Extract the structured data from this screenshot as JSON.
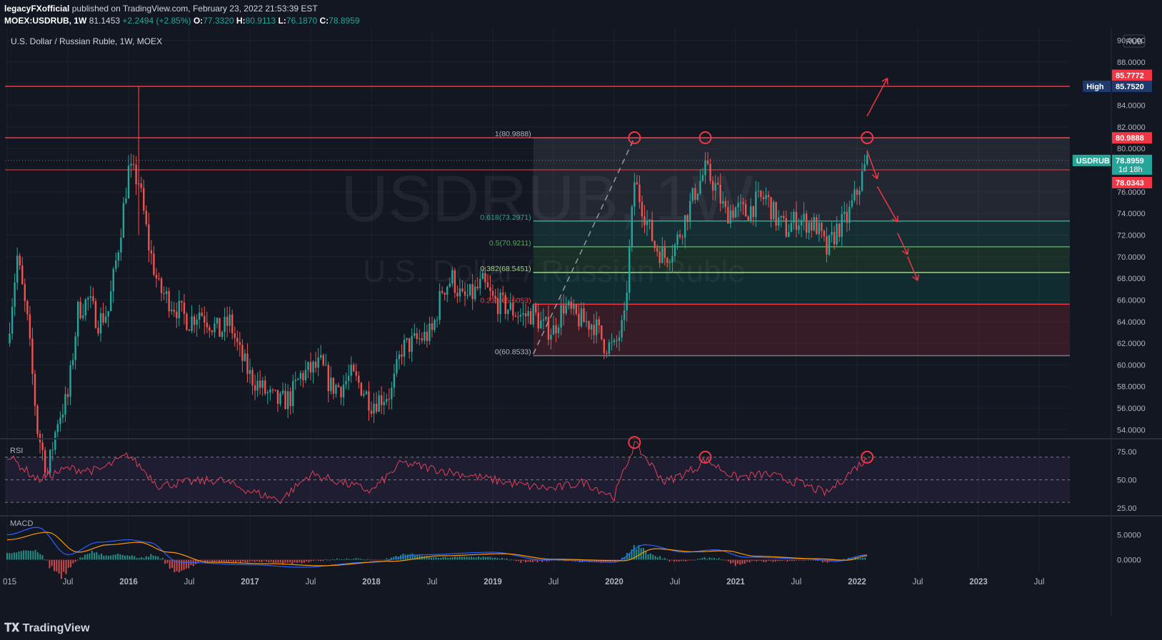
{
  "header": {
    "author": "legacyFXofficial",
    "published_text": "published on TradingView.com, February 23, 2022 21:53:39 EST",
    "symbol": "MOEX:USDRUB, 1W",
    "last": "81.1453",
    "change": "+2.2494 (+2.85%)",
    "o_label": "O:",
    "o_value": "77.3320",
    "h_label": "H:",
    "h_value": "80.9113",
    "l_label": "L:",
    "l_value": "76.1870",
    "c_label": "C:",
    "c_value": "78.8959"
  },
  "pane_title": "U.S. Dollar / Russian Ruble, 1W, MOEX",
  "watermark": {
    "symbol": "USDRUB, 1W",
    "name": "U.S. Dollar / Russian Ruble"
  },
  "currency_button": "RUB",
  "footer": {
    "logo_text": "TradingView"
  },
  "colors": {
    "background": "#131722",
    "grid": "#1e222d",
    "up": "#26a69a",
    "down": "#ef5350",
    "rsi": "#e0415a",
    "macd": "#2962ff",
    "signal": "#ff9800",
    "resistance": "#f23645"
  },
  "chart_data": [
    {
      "type": "candlestick",
      "title": "U.S. Dollar / Russian Ruble, 1W, MOEX",
      "x_ticks": [
        "015",
        "Jul",
        "2016",
        "Jul",
        "2017",
        "Jul",
        "2018",
        "Jul",
        "2019",
        "Jul",
        "2020",
        "Jul",
        "2021",
        "Jul",
        "2022",
        "Jul",
        "2023",
        "Jul"
      ],
      "y_ticks": [
        "90.0000",
        "88.0000",
        "86.0000",
        "84.0000",
        "82.0000",
        "80.0000",
        "78.0000",
        "76.0000",
        "74.0000",
        "72.0000",
        "70.0000",
        "68.0000",
        "66.0000",
        "64.0000",
        "62.0000",
        "60.0000",
        "58.0000",
        "56.0000",
        "54.0000"
      ],
      "ylim": [
        53.3,
        90.3
      ],
      "close_path": [
        [
          "2015-01",
          62
        ],
        [
          "2015-02",
          70
        ],
        [
          "2015-03",
          64
        ],
        [
          "2015-04",
          54
        ],
        [
          "2015-05",
          50
        ],
        [
          "2015-06",
          55
        ],
        [
          "2015-07",
          57
        ],
        [
          "2015-08",
          65
        ],
        [
          "2015-09",
          66
        ],
        [
          "2015-10",
          64
        ],
        [
          "2015-11",
          65
        ],
        [
          "2015-12",
          71
        ],
        [
          "2016-01",
          78
        ],
        [
          "2016-02",
          77
        ],
        [
          "2016-03",
          71
        ],
        [
          "2016-04",
          67
        ],
        [
          "2016-05",
          66
        ],
        [
          "2016-06",
          65
        ],
        [
          "2016-07",
          64
        ],
        [
          "2016-08",
          65
        ],
        [
          "2016-09",
          64
        ],
        [
          "2016-10",
          63
        ],
        [
          "2016-11",
          64
        ],
        [
          "2016-12",
          61
        ],
        [
          "2017-01",
          59
        ],
        [
          "2017-02",
          58
        ],
        [
          "2017-03",
          57
        ],
        [
          "2017-04",
          56.5
        ],
        [
          "2017-05",
          57
        ],
        [
          "2017-06",
          59
        ],
        [
          "2017-07",
          59.5
        ],
        [
          "2017-08",
          60
        ],
        [
          "2017-09",
          58
        ],
        [
          "2017-10",
          58
        ],
        [
          "2017-11",
          59
        ],
        [
          "2017-12",
          58
        ],
        [
          "2018-01",
          56.5
        ],
        [
          "2018-02",
          57
        ],
        [
          "2018-03",
          57.5
        ],
        [
          "2018-04",
          61.5
        ],
        [
          "2018-05",
          62
        ],
        [
          "2018-06",
          62.5
        ],
        [
          "2018-07",
          63
        ],
        [
          "2018-08",
          67
        ],
        [
          "2018-09",
          68
        ],
        [
          "2018-10",
          66
        ],
        [
          "2018-11",
          66.5
        ],
        [
          "2018-12",
          67.5
        ],
        [
          "2019-01",
          66
        ],
        [
          "2019-02",
          65.5
        ],
        [
          "2019-03",
          65
        ],
        [
          "2019-04",
          64.5
        ],
        [
          "2019-05",
          64.8
        ],
        [
          "2019-06",
          63.5
        ],
        [
          "2019-07",
          63.2
        ],
        [
          "2019-08",
          65.5
        ],
        [
          "2019-09",
          64.5
        ],
        [
          "2019-10",
          64
        ],
        [
          "2019-11",
          63.8
        ],
        [
          "2019-12",
          62
        ],
        [
          "2020-01",
          61.5
        ],
        [
          "2020-02",
          64
        ],
        [
          "2020-03",
          77
        ],
        [
          "2020-04",
          74
        ],
        [
          "2020-05",
          71
        ],
        [
          "2020-06",
          70
        ],
        [
          "2020-07",
          71
        ],
        [
          "2020-08",
          73.5
        ],
        [
          "2020-09",
          76
        ],
        [
          "2020-10",
          78
        ],
        [
          "2020-11",
          76.5
        ],
        [
          "2020-12",
          74
        ],
        [
          "2021-01",
          74.5
        ],
        [
          "2021-02",
          74
        ],
        [
          "2021-03",
          75
        ],
        [
          "2021-04",
          75.5
        ],
        [
          "2021-05",
          73.5
        ],
        [
          "2021-06",
          72.5
        ],
        [
          "2021-07",
          73.5
        ],
        [
          "2021-08",
          73.2
        ],
        [
          "2021-09",
          72.8
        ],
        [
          "2021-10",
          70.5
        ],
        [
          "2021-11",
          72.5
        ],
        [
          "2021-12",
          73.5
        ],
        [
          "2022-01",
          76
        ],
        [
          "2022-02",
          78.9
        ]
      ],
      "horizontal_levels": [
        {
          "name": "High",
          "value": 85.752
        },
        {
          "name": "resistance",
          "value": 80.9888
        },
        {
          "name": "support",
          "value": 78.0343
        }
      ],
      "price_tags": [
        {
          "text": "85.7772",
          "value": 85.7772,
          "style": "red"
        },
        {
          "label": "High",
          "text": "85.7520",
          "value": 85.752,
          "style": "navy"
        },
        {
          "text": "80.9888",
          "value": 80.9888,
          "style": "red"
        },
        {
          "label": "USDRUB",
          "text": "78.8959",
          "sub": "1d 18h",
          "value": 78.8959,
          "style": "teal"
        },
        {
          "text": "78.0343",
          "value": 78.0343,
          "style": "red"
        }
      ],
      "fibonacci": {
        "start": "2019-05",
        "end": "2023-07",
        "levels": [
          {
            "label": "1(80.9888)",
            "ratio": 1,
            "value": 80.9888
          },
          {
            "label": "0.618(73.2971)",
            "ratio": 0.618,
            "value": 73.2971
          },
          {
            "label": "0.5(70.9211)",
            "ratio": 0.5,
            "value": 70.9211
          },
          {
            "label": "0.382(68.5451)",
            "ratio": 0.382,
            "value": 68.5451
          },
          {
            "label": "0.236(65.6053)",
            "ratio": 0.236,
            "value": 65.6053
          },
          {
            "label": "0(60.8533)",
            "ratio": 0,
            "value": 60.8533
          }
        ]
      },
      "markers": [
        {
          "date": "2020-03",
          "value": 81
        },
        {
          "date": "2020-10",
          "value": 81
        },
        {
          "date": "2022-02",
          "value": 81
        }
      ],
      "trend_line": [
        [
          "2019-05",
          61
        ],
        [
          "2020-03",
          81
        ]
      ],
      "arrows": [
        [
          [
            "2022-02",
            83
          ],
          [
            "2022-04",
            86.5
          ]
        ],
        [
          [
            "2022-02",
            79.8
          ],
          [
            "2022-03",
            77.2
          ]
        ],
        [
          [
            "2022-03",
            76.5
          ],
          [
            "2022-05",
            73.2
          ]
        ],
        [
          [
            "2022-05",
            72.2
          ],
          [
            "2022-06",
            70.2
          ]
        ],
        [
          [
            "2022-06",
            70
          ],
          [
            "2022-07",
            67.8
          ]
        ]
      ]
    },
    {
      "type": "line",
      "title": "RSI",
      "y_ticks": [
        "75.00",
        "50.00",
        "25.00"
      ],
      "bands": [
        70,
        50,
        30
      ],
      "ylim": [
        20,
        85
      ],
      "series": [
        {
          "values": [
            [
              "2015-01",
              72
            ],
            [
              "2015-04",
              50
            ],
            [
              "2015-07",
              60
            ],
            [
              "2015-10",
              58
            ],
            [
              "2016-01",
              72
            ],
            [
              "2016-04",
              45
            ],
            [
              "2016-07",
              48
            ],
            [
              "2016-10",
              50
            ],
            [
              "2017-01",
              40
            ],
            [
              "2017-04",
              32
            ],
            [
              "2017-07",
              55
            ],
            [
              "2017-10",
              48
            ],
            [
              "2018-01",
              40
            ],
            [
              "2018-04",
              65
            ],
            [
              "2018-07",
              60
            ],
            [
              "2018-10",
              55
            ],
            [
              "2019-01",
              50
            ],
            [
              "2019-04",
              45
            ],
            [
              "2019-07",
              42
            ],
            [
              "2019-10",
              48
            ],
            [
              "2020-01",
              35
            ],
            [
              "2020-03",
              82
            ],
            [
              "2020-06",
              48
            ],
            [
              "2020-09",
              60
            ],
            [
              "2020-10",
              68
            ],
            [
              "2021-01",
              52
            ],
            [
              "2021-04",
              55
            ],
            [
              "2021-07",
              48
            ],
            [
              "2021-10",
              38
            ],
            [
              "2022-01",
              62
            ],
            [
              "2022-02",
              68
            ]
          ]
        }
      ],
      "markers": [
        {
          "date": "2020-03",
          "value": 83
        },
        {
          "date": "2020-10",
          "value": 70
        },
        {
          "date": "2022-02",
          "value": 70
        }
      ]
    },
    {
      "type": "line",
      "title": "MACD",
      "y_ticks": [
        "5.0000",
        "0.0000"
      ],
      "ylim": [
        -2.5,
        8.5
      ],
      "series": [
        {
          "role": "macd",
          "values": [
            [
              "2015-01",
              5
            ],
            [
              "2015-04",
              6.5
            ],
            [
              "2015-07",
              1
            ],
            [
              "2015-10",
              3.5
            ],
            [
              "2016-01",
              4
            ],
            [
              "2016-03",
              3.5
            ],
            [
              "2016-06",
              -0.5
            ],
            [
              "2017-01",
              -1
            ],
            [
              "2017-06",
              -1.5
            ],
            [
              "2018-01",
              -0.5
            ],
            [
              "2018-06",
              1
            ],
            [
              "2019-01",
              1.5
            ],
            [
              "2019-06",
              0
            ],
            [
              "2020-01",
              -0.5
            ],
            [
              "2020-04",
              3
            ],
            [
              "2020-08",
              1.5
            ],
            [
              "2020-11",
              2
            ],
            [
              "2021-02",
              0.5
            ],
            [
              "2021-08",
              0.2
            ],
            [
              "2021-11",
              -0.3
            ],
            [
              "2022-02",
              1
            ]
          ]
        },
        {
          "role": "signal",
          "values": [
            [
              "2015-01",
              4
            ],
            [
              "2015-05",
              5.5
            ],
            [
              "2015-08",
              1.5
            ],
            [
              "2015-11",
              3
            ],
            [
              "2016-02",
              3.5
            ],
            [
              "2016-05",
              1.5
            ],
            [
              "2016-09",
              -0.5
            ],
            [
              "2017-03",
              -0.8
            ],
            [
              "2017-08",
              -1.2
            ],
            [
              "2018-03",
              -0.3
            ],
            [
              "2018-08",
              0.8
            ],
            [
              "2019-02",
              1.2
            ],
            [
              "2019-07",
              0.1
            ],
            [
              "2020-02",
              -0.2
            ],
            [
              "2020-05",
              2.2
            ],
            [
              "2020-09",
              1.6
            ],
            [
              "2020-12",
              1.8
            ],
            [
              "2021-03",
              0.7
            ],
            [
              "2021-09",
              0.2
            ],
            [
              "2021-12",
              -0.1
            ],
            [
              "2022-02",
              0.8
            ]
          ]
        }
      ]
    }
  ]
}
